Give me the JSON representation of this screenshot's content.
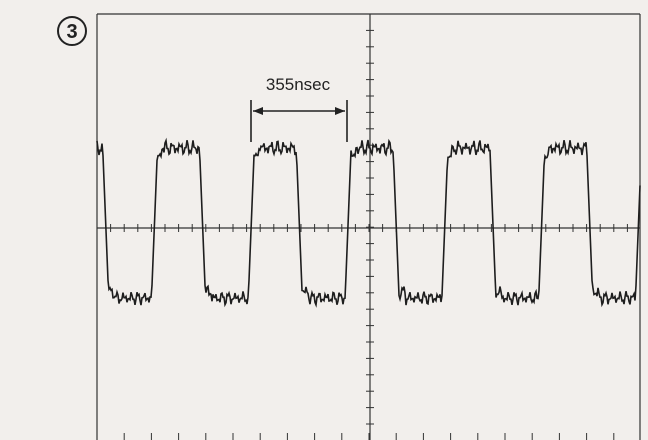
{
  "figure_label": "3",
  "annotation": "355nsec"
}
